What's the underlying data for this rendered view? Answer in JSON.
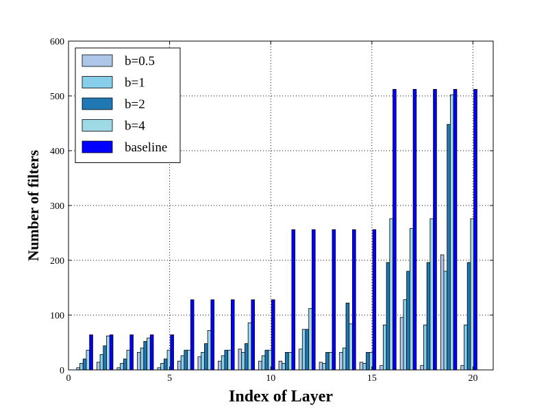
{
  "chart_data": {
    "type": "bar",
    "title": "",
    "xlabel": "Index of Layer",
    "ylabel": "Number of filters",
    "xlim": [
      0,
      21
    ],
    "ylim": [
      0,
      600
    ],
    "xticks": [
      0,
      5,
      10,
      15,
      20
    ],
    "yticks": [
      0,
      100,
      200,
      300,
      400,
      500,
      600
    ],
    "grid": true,
    "legend_position": "top-left",
    "categories": [
      1,
      2,
      3,
      4,
      5,
      6,
      7,
      8,
      9,
      10,
      11,
      12,
      13,
      14,
      15,
      16,
      17,
      18,
      19,
      20
    ],
    "series": [
      {
        "name": "b=0.5",
        "color": "#aec7e8",
        "values": [
          4,
          14,
          4,
          32,
          4,
          16,
          24,
          16,
          38,
          16,
          16,
          38,
          14,
          32,
          14,
          8,
          96,
          8,
          210,
          8
        ]
      },
      {
        "name": "b=1",
        "color": "#87ceeb",
        "values": [
          12,
          28,
          12,
          40,
          12,
          26,
          32,
          26,
          32,
          26,
          12,
          74,
          12,
          40,
          12,
          82,
          128,
          82,
          180,
          82
        ]
      },
      {
        "name": "b=2",
        "color": "#1f77b4",
        "values": [
          20,
          44,
          20,
          52,
          20,
          36,
          48,
          36,
          48,
          36,
          32,
          74,
          32,
          122,
          32,
          196,
          180,
          196,
          448,
          196
        ]
      },
      {
        "name": "b=4",
        "color": "#9edae5",
        "values": [
          36,
          62,
          36,
          58,
          36,
          36,
          72,
          36,
          86,
          36,
          32,
          112,
          32,
          84,
          32,
          276,
          258,
          276,
          502,
          276
        ]
      },
      {
        "name": "baseline",
        "color": "#0000ff",
        "values": [
          64,
          64,
          64,
          64,
          64,
          128,
          128,
          128,
          128,
          128,
          256,
          256,
          256,
          256,
          256,
          512,
          512,
          512,
          512,
          512
        ]
      }
    ]
  }
}
